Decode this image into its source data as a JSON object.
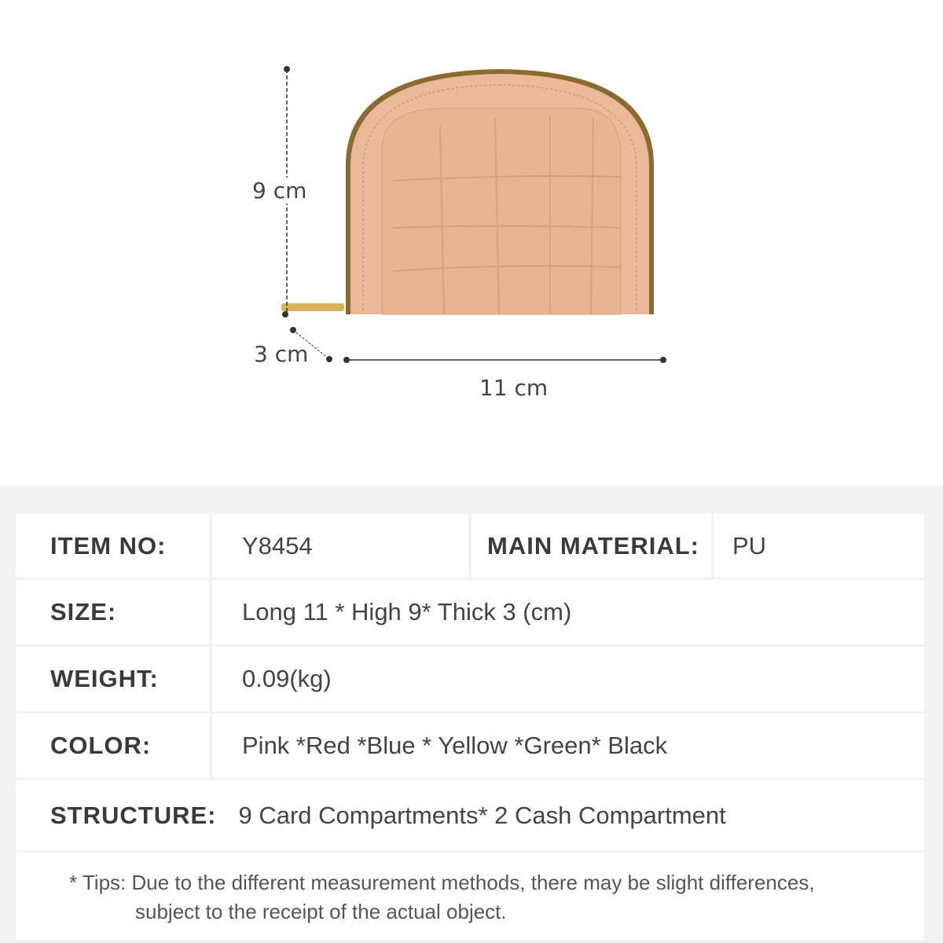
{
  "dimensions": {
    "height": "9 cm",
    "thickness": "3 cm",
    "length": "11 cm"
  },
  "product_color": "#e8b896",
  "specs": {
    "item_no_label": "ITEM NO:",
    "item_no": "Y8454",
    "material_label": "MAIN MATERIAL:",
    "material": "PU",
    "size_label": "SIZE:",
    "size": "Long 11 * High 9* Thick 3 (cm)",
    "weight_label": "WEIGHT:",
    "weight": "0.09(kg)",
    "color_label": "COLOR:",
    "color": "Pink *Red *Blue * Yellow *Green* Black",
    "structure_label": "STRUCTURE:",
    "structure": "9 Card Compartments* 2 Cash Compartment"
  },
  "tips": {
    "line1": "* Tips: Due to the different measurement methods, there may be slight differences,",
    "line2": "subject to the receipt of the actual object."
  }
}
